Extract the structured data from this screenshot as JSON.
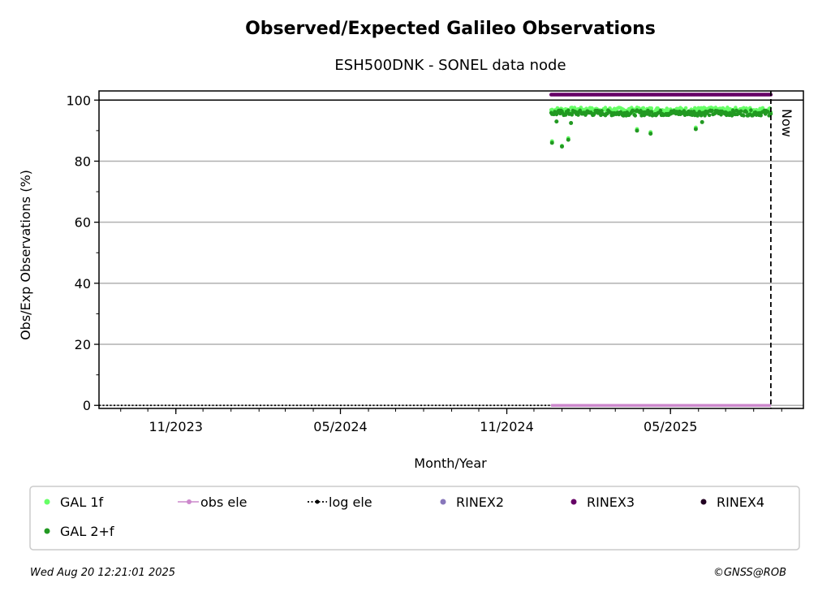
{
  "chart_data": {
    "type": "scatter",
    "title": "Observed/Expected Galileo Observations",
    "subtitle": "ESH500DNK - SONEL data node",
    "xlabel": "Month/Year",
    "ylabel": "Obs/Exp Observations (%)",
    "xlim": [
      "2023-08-08",
      "2025-09-25"
    ],
    "ylim": [
      -1,
      103
    ],
    "yticks": [
      0,
      20,
      40,
      60,
      80,
      100
    ],
    "xticks": [
      {
        "date": "2023-11-01",
        "label": "11/2023"
      },
      {
        "date": "2024-05-01",
        "label": "05/2024"
      },
      {
        "date": "2024-11-01",
        "label": "11/2024"
      },
      {
        "date": "2025-05-01",
        "label": "05/2025"
      }
    ],
    "grid": true,
    "now_marker": {
      "date": "2025-08-20",
      "label": "Now"
    },
    "reference_line": 100,
    "series": [
      {
        "name": "GAL 1f",
        "color": "#66ff66",
        "x_range": [
          "2024-12-20",
          "2025-08-20"
        ],
        "typical_value": 96.8,
        "outliers": [
          {
            "x": "2024-12-21",
            "y": 86.5
          },
          {
            "x": "2025-01-01",
            "y": 85.0
          },
          {
            "x": "2025-01-08",
            "y": 87.5
          },
          {
            "x": "2025-03-25",
            "y": 90.5
          },
          {
            "x": "2025-04-09",
            "y": 89.5
          },
          {
            "x": "2025-05-29",
            "y": 91.0
          }
        ]
      },
      {
        "name": "GAL 2+f",
        "color": "#229922",
        "x_range": [
          "2024-12-20",
          "2025-08-20"
        ],
        "typical_value": 95.8,
        "outliers": [
          {
            "x": "2024-12-21",
            "y": 86.0
          },
          {
            "x": "2024-12-26",
            "y": 93.0
          },
          {
            "x": "2025-01-01",
            "y": 84.8
          },
          {
            "x": "2025-01-08",
            "y": 87.0
          },
          {
            "x": "2025-01-11",
            "y": 92.5
          },
          {
            "x": "2025-03-25",
            "y": 90.0
          },
          {
            "x": "2025-04-09",
            "y": 89.0
          },
          {
            "x": "2025-05-29",
            "y": 90.5
          },
          {
            "x": "2025-06-05",
            "y": 92.8
          }
        ]
      },
      {
        "name": "obs ele",
        "color": "#cc88cc",
        "x_range": [
          "2024-12-20",
          "2025-08-20"
        ],
        "value": 0
      },
      {
        "name": "log ele",
        "color": "#000000",
        "x_range": [
          "2023-08-08",
          "2025-08-20"
        ],
        "value": 0
      },
      {
        "name": "RINEX2",
        "color": "#8877bb"
      },
      {
        "name": "RINEX3",
        "color": "#660066",
        "x_range": [
          "2024-12-20",
          "2025-08-20"
        ],
        "value": 101.8
      },
      {
        "name": "RINEX4",
        "color": "#220022"
      }
    ]
  },
  "legend": [
    {
      "label": "GAL 1f",
      "color": "#66ff66",
      "icon": "marker-dot"
    },
    {
      "label": "obs ele",
      "color": "#cc88cc",
      "icon": "line-with-dot"
    },
    {
      "label": "log ele",
      "color": "#000000",
      "icon": "dotted-line-with-dot"
    },
    {
      "label": "RINEX2",
      "color": "#8877bb",
      "icon": "marker-dot"
    },
    {
      "label": "RINEX3",
      "color": "#660066",
      "icon": "marker-dot"
    },
    {
      "label": "RINEX4",
      "color": "#220022",
      "icon": "marker-dot"
    },
    {
      "label": "GAL 2+f",
      "color": "#229922",
      "icon": "marker-dot"
    }
  ],
  "footer": {
    "timestamp": "Wed Aug 20 12:21:01 2025",
    "credit": "©GNSS@ROB"
  }
}
